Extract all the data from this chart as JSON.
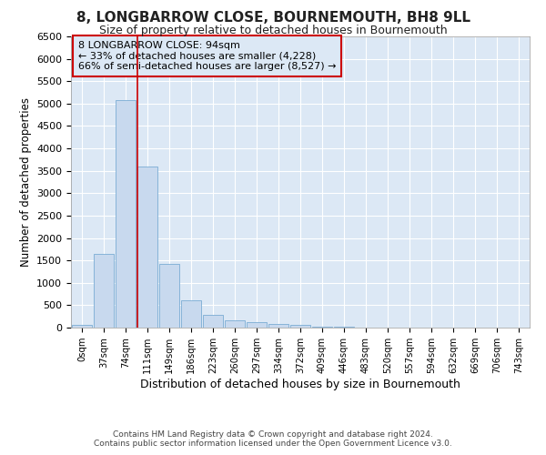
{
  "title": "8, LONGBARROW CLOSE, BOURNEMOUTH, BH8 9LL",
  "subtitle": "Size of property relative to detached houses in Bournemouth",
  "xlabel": "Distribution of detached houses by size in Bournemouth",
  "ylabel": "Number of detached properties",
  "footer_line1": "Contains HM Land Registry data © Crown copyright and database right 2024.",
  "footer_line2": "Contains public sector information licensed under the Open Government Licence v3.0.",
  "annotation_title": "8 LONGBARROW CLOSE: 94sqm",
  "annotation_line1": "← 33% of detached houses are smaller (4,228)",
  "annotation_line2": "66% of semi-detached houses are larger (8,527) →",
  "bin_labels": [
    "0sqm",
    "37sqm",
    "74sqm",
    "111sqm",
    "149sqm",
    "186sqm",
    "223sqm",
    "260sqm",
    "297sqm",
    "334sqm",
    "372sqm",
    "409sqm",
    "446sqm",
    "483sqm",
    "520sqm",
    "557sqm",
    "594sqm",
    "632sqm",
    "669sqm",
    "706sqm",
    "743sqm"
  ],
  "bar_heights": [
    70,
    1650,
    5080,
    3600,
    1420,
    610,
    290,
    155,
    115,
    90,
    55,
    30,
    20,
    10,
    5,
    3,
    2,
    1,
    1,
    0,
    0
  ],
  "bar_color": "#c8d9ee",
  "bar_edge_color": "#7aacd4",
  "vline_color": "#cc0000",
  "vline_x": 2.54,
  "ylim": [
    0,
    6500
  ],
  "yticks": [
    0,
    500,
    1000,
    1500,
    2000,
    2500,
    3000,
    3500,
    4000,
    4500,
    5000,
    5500,
    6000,
    6500
  ],
  "annotation_box_color": "#cc0000",
  "plot_bg_color": "#dce8f5",
  "fig_bg_color": "#ffffff",
  "grid_color": "#ffffff",
  "title_fontsize": 11,
  "subtitle_fontsize": 9
}
